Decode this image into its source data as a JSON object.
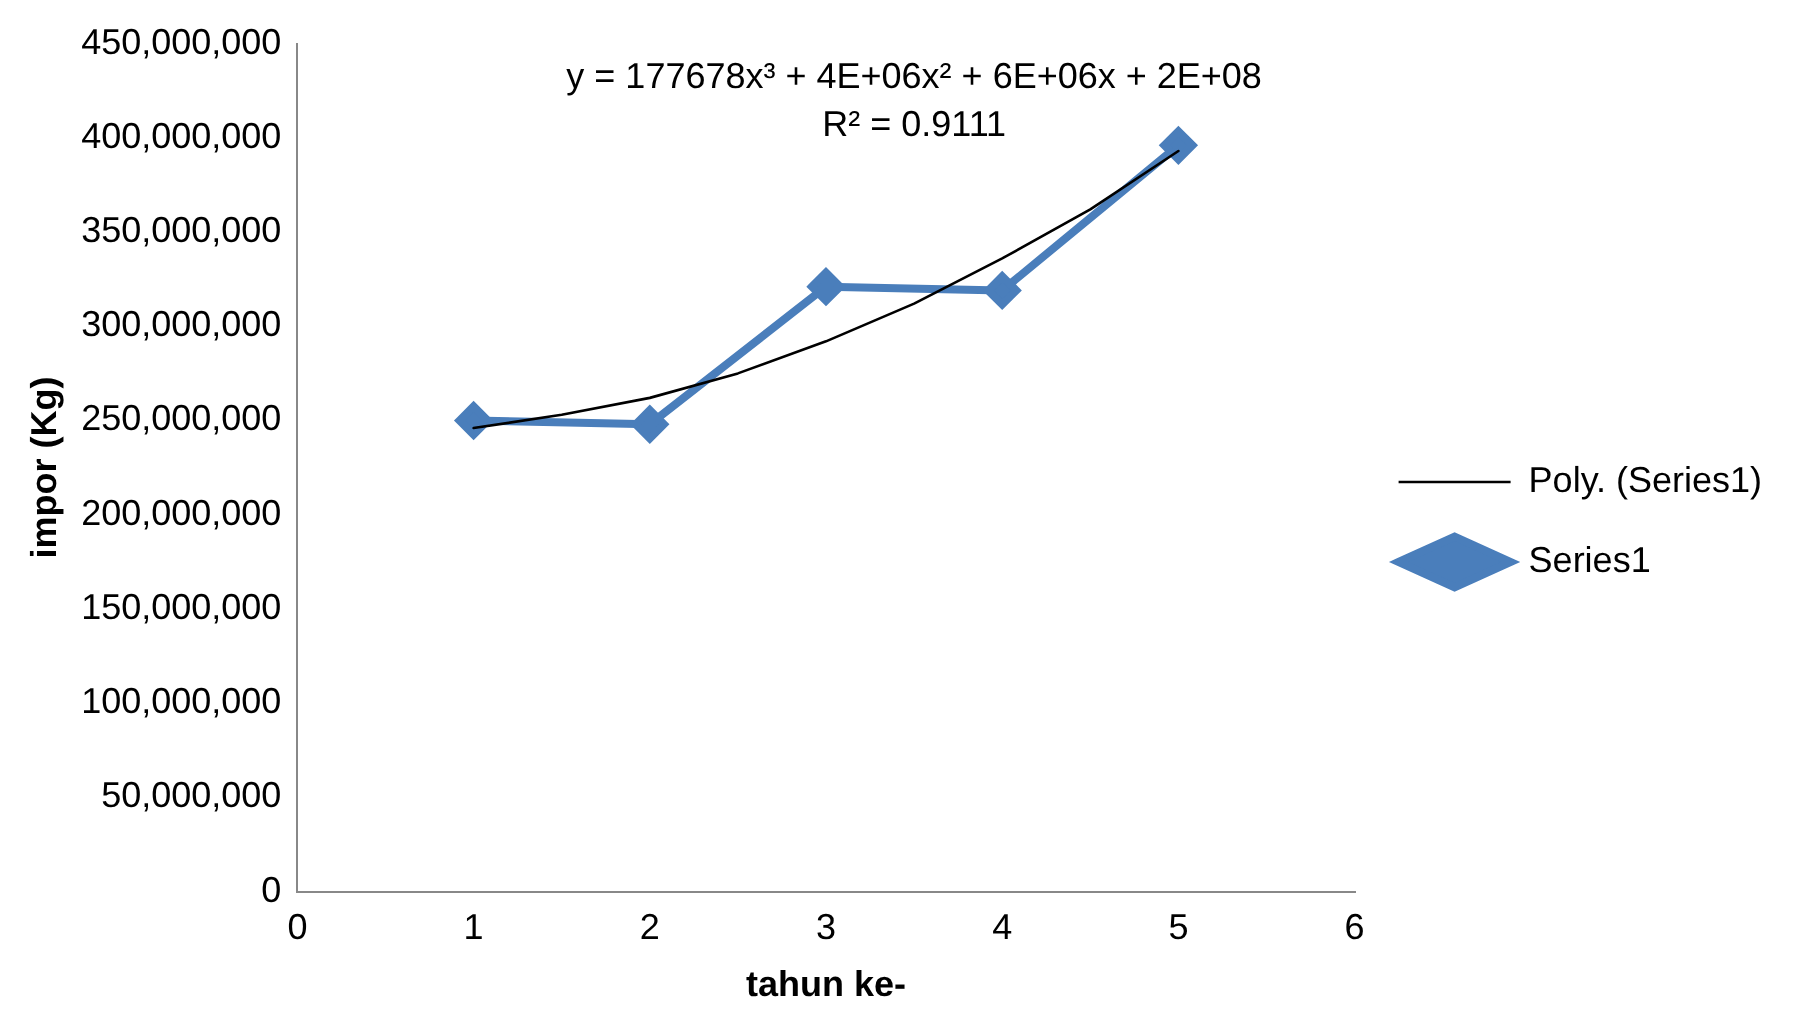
{
  "chart_data": {
    "type": "line",
    "xlabel": "tahun ke-",
    "ylabel": "impor (Kg)",
    "xlim": [
      0,
      6
    ],
    "xticks": [
      0,
      1,
      2,
      3,
      4,
      5,
      6
    ],
    "ylim": [
      0,
      450000000
    ],
    "yticks": [
      0,
      {
        "value": 50000000,
        "label": "50,000,000"
      },
      {
        "value": 100000000,
        "label": "100,000,000"
      },
      {
        "value": 150000000,
        "label": "150,000,000"
      },
      {
        "value": 200000000,
        "label": "200,000,000"
      },
      {
        "value": 250000000,
        "label": "250,000,000"
      },
      {
        "value": 300000000,
        "label": "300,000,000"
      },
      {
        "value": 350000000,
        "label": "350,000,000"
      },
      {
        "value": 400000000,
        "label": "400,000,000"
      },
      {
        "value": 450000000,
        "label": "450,000,000"
      }
    ],
    "series": [
      {
        "name": "Series1",
        "color": "#4a7ebb",
        "x": [
          1,
          2,
          3,
          4,
          5
        ],
        "values": [
          250000000,
          248000000,
          321000000,
          319000000,
          396000000
        ],
        "marker": "diamond"
      },
      {
        "name": "Poly. (Series1)",
        "type": "line",
        "color": "#000000",
        "x": [
          1,
          1.5,
          2,
          2.5,
          3,
          3.5,
          4,
          4.5,
          5
        ],
        "values": [
          246000000,
          253000000,
          262000000,
          275000000,
          292000000,
          312000000,
          336000000,
          362000000,
          393000000
        ],
        "marker": "none"
      }
    ],
    "annotations": [
      "y = 177678x³ + 4E+06x² + 6E+06x + 2E+08",
      "R² = 0.9111"
    ],
    "grid": false,
    "legend": "right"
  }
}
